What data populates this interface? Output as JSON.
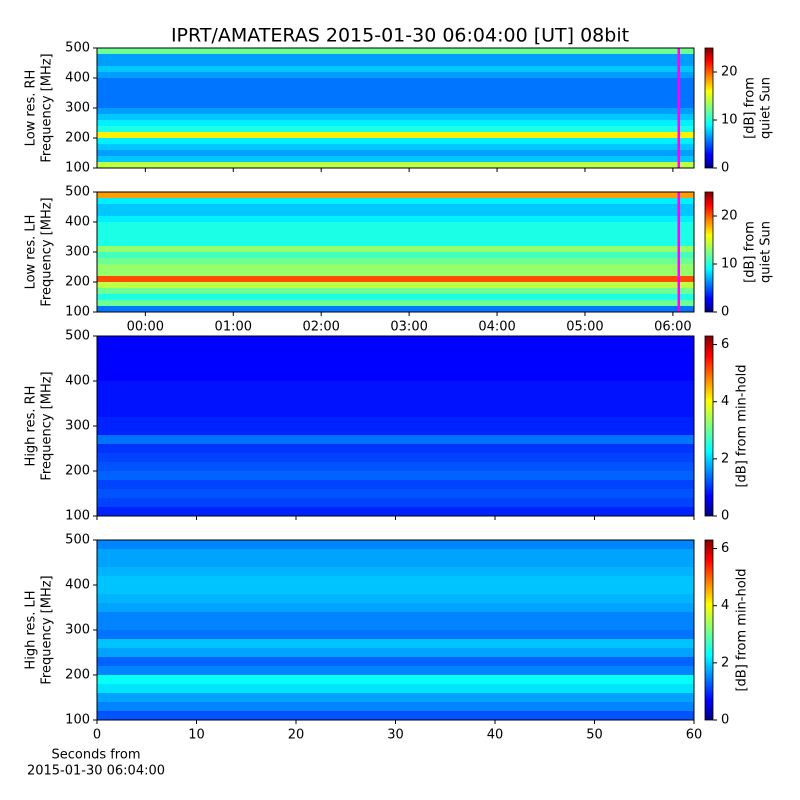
{
  "title": "IPRT/AMATERAS 2015-01-30 06:04:00 [UT]   08bit",
  "chart_data": [
    {
      "type": "spectrogram",
      "ylabel": [
        "Low res. RH",
        "Frequency [MHz]"
      ],
      "colorbar_label": [
        "[dB] from",
        "quiet Sun"
      ],
      "xlim": [
        -0.55,
        6.24
      ],
      "ylim": [
        100,
        500
      ],
      "yticks": [
        100,
        200,
        300,
        400,
        500
      ],
      "clim": [
        0,
        25
      ],
      "cticks": [
        0,
        10,
        20
      ],
      "marker_x": 6.0667,
      "marker_color": "#ff00ff",
      "frequencies": [
        110,
        130,
        150,
        170,
        190,
        210,
        230,
        250,
        270,
        290,
        310,
        330,
        350,
        370,
        390,
        410,
        430,
        450,
        470,
        490
      ],
      "values": [
        14,
        8,
        7,
        8,
        9,
        16,
        10,
        9,
        8,
        7,
        6,
        6,
        6,
        6,
        6,
        7,
        8,
        7,
        7,
        12
      ]
    },
    {
      "type": "spectrogram",
      "ylabel": [
        "Low res. LH",
        "Frequency [MHz]"
      ],
      "colorbar_label": [
        "[dB] from",
        "quiet Sun"
      ],
      "xlim": [
        -0.55,
        6.24
      ],
      "ylim": [
        100,
        500
      ],
      "yticks": [
        100,
        200,
        300,
        400,
        500
      ],
      "xticks": [
        {
          "value": 0,
          "label": "00:00"
        },
        {
          "value": 1,
          "label": "01:00"
        },
        {
          "value": 2,
          "label": "02:00"
        },
        {
          "value": 3,
          "label": "03:00"
        },
        {
          "value": 4,
          "label": "04:00"
        },
        {
          "value": 5,
          "label": "05:00"
        },
        {
          "value": 6,
          "label": "06:00"
        }
      ],
      "clim": [
        0,
        25
      ],
      "cticks": [
        0,
        10,
        20
      ],
      "marker_x": 6.0667,
      "marker_color": "#ff00ff",
      "frequencies": [
        110,
        130,
        150,
        170,
        190,
        210,
        230,
        250,
        270,
        290,
        310,
        330,
        350,
        370,
        390,
        410,
        430,
        450,
        470,
        490
      ],
      "values": [
        6,
        12,
        10,
        12,
        14,
        20,
        13,
        13,
        12,
        11,
        13,
        10,
        10,
        10,
        10,
        9,
        8,
        8,
        9,
        18
      ]
    },
    {
      "type": "spectrogram",
      "ylabel": [
        "High res. RH",
        "Frequency [MHz]"
      ],
      "colorbar_label": [
        "[dB] from min-hold"
      ],
      "xlim": [
        0,
        60
      ],
      "ylim": [
        100,
        500
      ],
      "yticks": [
        100,
        200,
        300,
        400,
        500
      ],
      "clim": [
        0,
        6.3
      ],
      "cticks": [
        0,
        2,
        4,
        6
      ],
      "frequencies": [
        110,
        130,
        150,
        170,
        190,
        210,
        230,
        250,
        270,
        290,
        310,
        330,
        350,
        370,
        390,
        410,
        430,
        450,
        470,
        490
      ],
      "values": [
        1,
        1.2,
        1.3,
        1.2,
        1.4,
        1.3,
        1.2,
        1.1,
        1.5,
        1.0,
        1.0,
        0.9,
        0.9,
        0.9,
        0.9,
        0.8,
        0.8,
        0.8,
        0.8,
        0.8
      ]
    },
    {
      "type": "spectrogram",
      "ylabel": [
        "High res. LH",
        "Frequency [MHz]"
      ],
      "colorbar_label": [
        "[dB] from min-hold"
      ],
      "xlabel": [
        "Seconds from",
        "2015-01-30 06:04:00"
      ],
      "xlim": [
        0,
        60
      ],
      "ylim": [
        100,
        500
      ],
      "yticks": [
        100,
        200,
        300,
        400,
        500
      ],
      "xticks": [
        0,
        10,
        20,
        30,
        40,
        50,
        60
      ],
      "clim": [
        0,
        6.3
      ],
      "cticks": [
        0,
        2,
        4,
        6
      ],
      "frequencies": [
        110,
        130,
        150,
        170,
        190,
        210,
        230,
        250,
        270,
        290,
        310,
        330,
        350,
        370,
        390,
        410,
        430,
        450,
        470,
        490
      ],
      "values": [
        1.3,
        1.6,
        1.8,
        2.2,
        2.4,
        1.6,
        1.4,
        1.8,
        2.0,
        1.5,
        1.6,
        1.6,
        1.8,
        1.9,
        2.0,
        2.0,
        1.9,
        1.8,
        1.8,
        1.6
      ]
    }
  ]
}
